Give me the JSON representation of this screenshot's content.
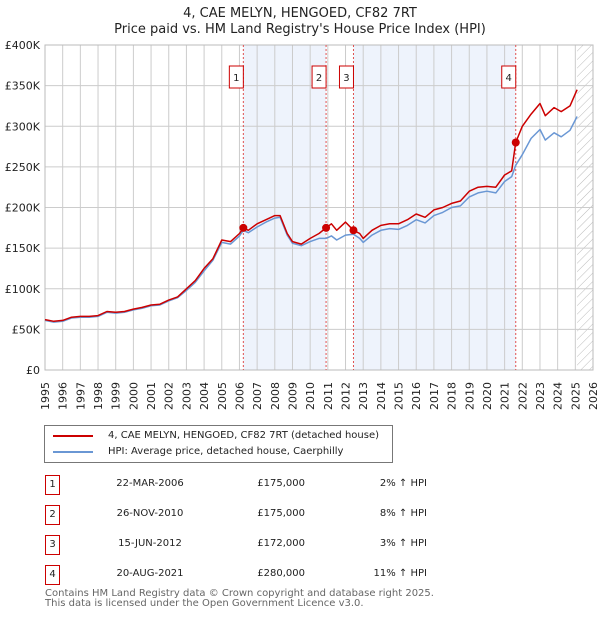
{
  "header": {
    "title": "4, CAE MELYN, HENGOED, CF82 7RT",
    "subtitle": "Price paid vs. HM Land Registry's House Price Index (HPI)"
  },
  "colors": {
    "property": "#cc0000",
    "hpi": "#6a97d4",
    "shade": "#eef3fc",
    "grid": "#cccccc"
  },
  "chart_data": {
    "type": "line",
    "title": "Price paid vs. HM Land Registry's House Price Index (HPI)",
    "xlim": [
      1995,
      2026
    ],
    "ylim": [
      0,
      400000
    ],
    "y_ticks": [
      0,
      50000,
      100000,
      150000,
      200000,
      250000,
      300000,
      350000,
      400000
    ],
    "y_tick_labels": [
      "£0",
      "£50K",
      "£100K",
      "£150K",
      "£200K",
      "£250K",
      "£300K",
      "£350K",
      "£400K"
    ],
    "x_ticks": [
      "1995",
      "1996",
      "1997",
      "1998",
      "1999",
      "2000",
      "2001",
      "2002",
      "2003",
      "2004",
      "2005",
      "2006",
      "2007",
      "2008",
      "2009",
      "2010",
      "2011",
      "2012",
      "2013",
      "2014",
      "2015",
      "2016",
      "2017",
      "2018",
      "2019",
      "2020",
      "2021",
      "2022",
      "2023",
      "2024",
      "2025",
      "2026"
    ],
    "grid": true,
    "forecast_hatch_from": 2025.1,
    "series": [
      {
        "name": "4, CAE MELYN, HENGOED, CF82 7RT (detached house)",
        "x": [
          1995,
          1995.5,
          1996,
          1996.5,
          1997,
          1997.5,
          1998,
          1998.5,
          1999,
          1999.5,
          2000,
          2000.5,
          2001,
          2001.5,
          2002,
          2002.5,
          2003,
          2003.5,
          2004,
          2004.5,
          2005,
          2005.5,
          2006,
          2006.22,
          2006.5,
          2007,
          2007.5,
          2008,
          2008.3,
          2008.7,
          2009,
          2009.5,
          2010,
          2010.5,
          2010.9,
          2011.2,
          2011.5,
          2012,
          2012.45,
          2012.8,
          2013,
          2013.5,
          2014,
          2014.5,
          2015,
          2015.5,
          2016,
          2016.5,
          2017,
          2017.5,
          2018,
          2018.5,
          2019,
          2019.5,
          2020,
          2020.5,
          2021,
          2021.4,
          2021.63,
          2022,
          2022.5,
          2023,
          2023.3,
          2023.8,
          2024.2,
          2024.7,
          2025.1
        ],
        "y": [
          62000,
          60000,
          61000,
          65000,
          66000,
          66000,
          67000,
          72000,
          71000,
          72000,
          75000,
          77000,
          80000,
          81000,
          86000,
          90000,
          100000,
          110000,
          125000,
          137000,
          160000,
          158000,
          168000,
          175000,
          172000,
          180000,
          185000,
          190000,
          190000,
          168000,
          158000,
          155000,
          162000,
          168000,
          175000,
          180000,
          172000,
          182000,
          172000,
          168000,
          162000,
          172000,
          178000,
          180000,
          180000,
          185000,
          192000,
          188000,
          197000,
          200000,
          205000,
          208000,
          220000,
          225000,
          226000,
          225000,
          240000,
          245000,
          280000,
          300000,
          315000,
          328000,
          313000,
          323000,
          318000,
          325000,
          345000
        ]
      },
      {
        "name": "HPI: Average price, detached house, Caerphilly",
        "x": [
          1995,
          1995.5,
          1996,
          1996.5,
          1997,
          1997.5,
          1998,
          1998.5,
          1999,
          1999.5,
          2000,
          2000.5,
          2001,
          2001.5,
          2002,
          2002.5,
          2003,
          2003.5,
          2004,
          2004.5,
          2005,
          2005.5,
          2006,
          2006.22,
          2006.5,
          2007,
          2007.5,
          2008,
          2008.3,
          2008.7,
          2009,
          2009.5,
          2010,
          2010.5,
          2010.9,
          2011.2,
          2011.5,
          2012,
          2012.45,
          2012.8,
          2013,
          2013.5,
          2014,
          2014.5,
          2015,
          2015.5,
          2016,
          2016.5,
          2017,
          2017.5,
          2018,
          2018.5,
          2019,
          2019.5,
          2020,
          2020.5,
          2021,
          2021.4,
          2021.63,
          2022,
          2022.5,
          2023,
          2023.3,
          2023.8,
          2024.2,
          2024.7,
          2025.1
        ],
        "y": [
          61000,
          59000,
          60000,
          64000,
          65000,
          65000,
          66000,
          71000,
          70000,
          71000,
          74000,
          76000,
          79000,
          80000,
          85000,
          89000,
          98000,
          108000,
          122000,
          135000,
          157000,
          155000,
          165000,
          172000,
          169000,
          176000,
          182000,
          187000,
          188000,
          166000,
          156000,
          153000,
          158000,
          162000,
          162000,
          165000,
          160000,
          166000,
          167000,
          162000,
          157000,
          166000,
          172000,
          174000,
          173000,
          178000,
          185000,
          181000,
          190000,
          194000,
          200000,
          202000,
          213000,
          218000,
          220000,
          218000,
          232000,
          238000,
          252000,
          265000,
          285000,
          296000,
          283000,
          292000,
          287000,
          295000,
          312000
        ]
      }
    ],
    "sales": [
      {
        "label": "1",
        "x": 2006.22,
        "y": 175000
      },
      {
        "label": "2",
        "x": 2010.9,
        "y": 175000
      },
      {
        "label": "3",
        "x": 2012.45,
        "y": 172000
      },
      {
        "label": "4",
        "x": 2021.63,
        "y": 280000
      }
    ]
  },
  "legend": {
    "property": "4, CAE MELYN, HENGOED, CF82 7RT (detached house)",
    "hpi": "HPI: Average price, detached house, Caerphilly"
  },
  "transactions": [
    {
      "num": "1",
      "date": "22-MAR-2006",
      "price": "£175,000",
      "hpi": "2% ↑ HPI"
    },
    {
      "num": "2",
      "date": "26-NOV-2010",
      "price": "£175,000",
      "hpi": "8% ↑ HPI"
    },
    {
      "num": "3",
      "date": "15-JUN-2012",
      "price": "£172,000",
      "hpi": "3% ↑ HPI"
    },
    {
      "num": "4",
      "date": "20-AUG-2021",
      "price": "£280,000",
      "hpi": "11% ↑ HPI"
    }
  ],
  "footer": {
    "line1": "Contains HM Land Registry data © Crown copyright and database right 2025.",
    "line2": "This data is licensed under the Open Government Licence v3.0."
  }
}
